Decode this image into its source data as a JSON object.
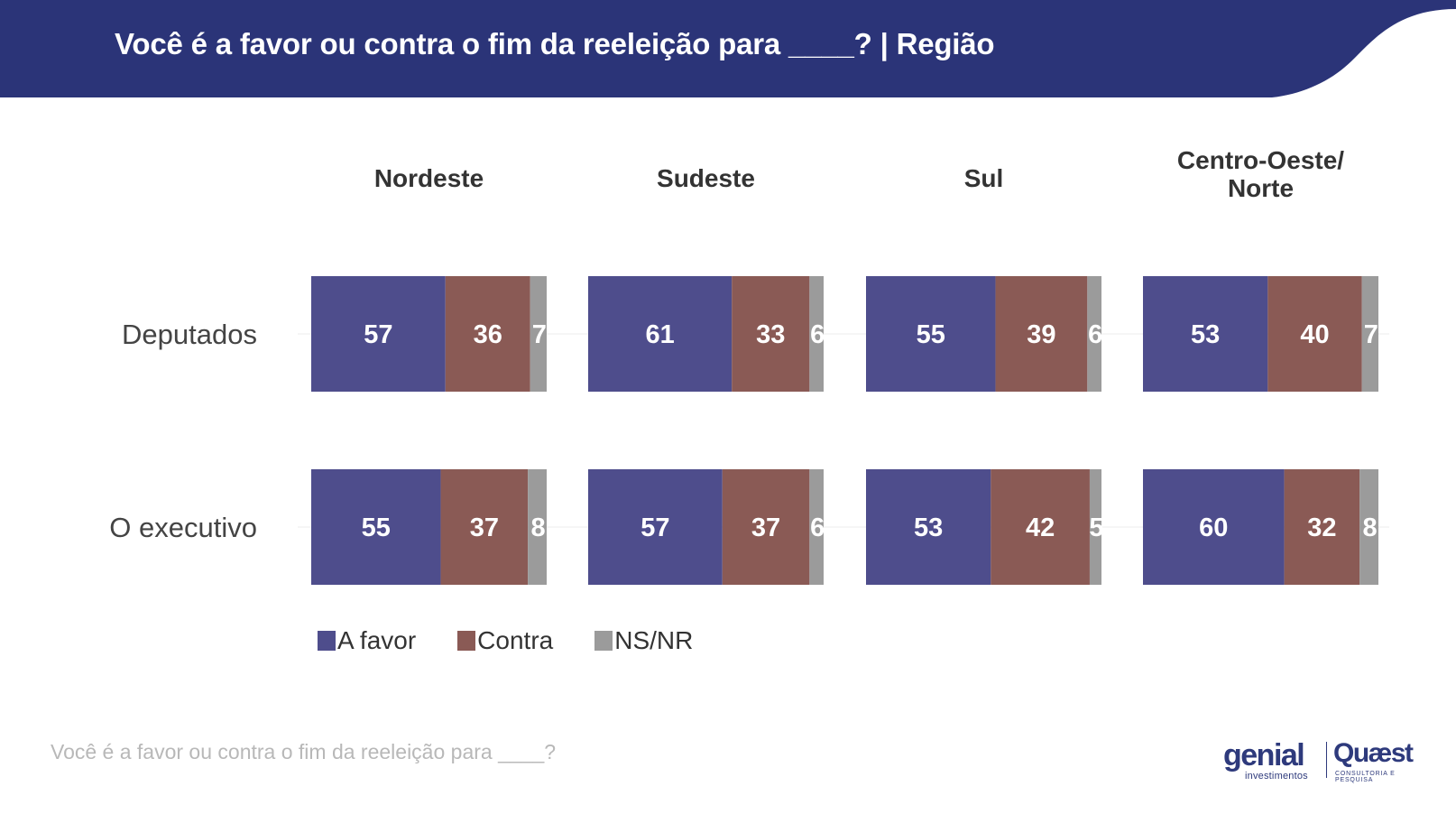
{
  "header": {
    "title": "Você é a favor ou contra o fim da reeleição para ____? | Região"
  },
  "colors": {
    "header_bg": "#2b3478",
    "a_favor": "#4e4d8c",
    "contra": "#8a5a55",
    "ns_nr": "#9b9b9b"
  },
  "chart_data": {
    "type": "bar",
    "stacked": true,
    "orientation": "horizontal",
    "facets": [
      "Nordeste",
      "Sudeste",
      "Sul",
      "Centro-Oeste/ Norte"
    ],
    "categories": [
      "Deputados",
      "O executivo"
    ],
    "series": [
      {
        "name": "A favor",
        "values": [
          [
            57,
            55
          ],
          [
            61,
            57
          ],
          [
            55,
            53
          ],
          [
            53,
            60
          ]
        ]
      },
      {
        "name": "Contra",
        "values": [
          [
            36,
            37
          ],
          [
            33,
            37
          ],
          [
            39,
            42
          ],
          [
            40,
            32
          ]
        ]
      },
      {
        "name": "NS/NR",
        "values": [
          [
            7,
            8
          ],
          [
            6,
            6
          ],
          [
            6,
            5
          ],
          [
            7,
            8
          ]
        ]
      }
    ],
    "xlim": [
      0,
      100
    ],
    "grid": false,
    "legend_placement": "bottom"
  },
  "legend": {
    "items": [
      {
        "label": "A favor"
      },
      {
        "label": "Contra"
      },
      {
        "label": "NS/NR"
      }
    ]
  },
  "footnote": "Você é a favor ou contra o fim da reeleição para ____?",
  "logos": {
    "genial": "genial",
    "genial_sub": "investimentos",
    "quaest": "Quæst",
    "quaest_sub": "CONSULTORIA E PESQUISA"
  }
}
